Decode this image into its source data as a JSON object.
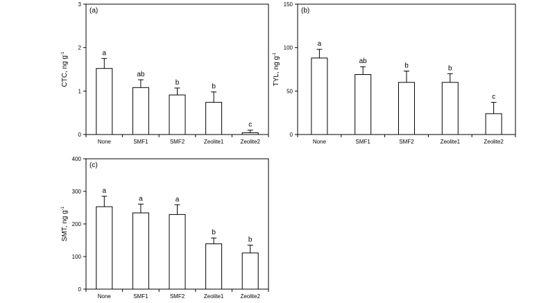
{
  "figure_title": "",
  "chart_data": [
    {
      "type": "bar",
      "panel": "(a)",
      "ylabel": "CTC, ng g",
      "ylabel_sup": "-1",
      "xlabel": "",
      "categories": [
        "None",
        "SMF1",
        "SMF2",
        "Zeolite1",
        "Zeolite2"
      ],
      "values": [
        1.52,
        1.08,
        0.91,
        0.74,
        0.04
      ],
      "errors": [
        0.23,
        0.18,
        0.16,
        0.24,
        0.06
      ],
      "significance": [
        "a",
        "ab",
        "b",
        "b",
        "c"
      ],
      "ylim": [
        0,
        3
      ],
      "yticks": [
        0,
        1,
        2,
        3
      ],
      "grid": false,
      "legend": "none"
    },
    {
      "type": "bar",
      "panel": "(b)",
      "ylabel": "TYL, ng g",
      "ylabel_sup": "-1",
      "xlabel": "",
      "categories": [
        "None",
        "SMF1",
        "SMF2",
        "Zeolite1",
        "Zeolite2"
      ],
      "values": [
        88,
        69,
        60,
        60,
        24
      ],
      "errors": [
        10,
        9,
        13,
        10,
        13
      ],
      "significance": [
        "a",
        "ab",
        "b",
        "b",
        "c"
      ],
      "ylim": [
        0,
        150
      ],
      "yticks": [
        0,
        50,
        100,
        150
      ],
      "grid": false,
      "legend": "none"
    },
    {
      "type": "bar",
      "panel": "(c)",
      "ylabel": "SMT, ng g",
      "ylabel_sup": "-1",
      "xlabel": "",
      "categories": [
        "None",
        "SMF1",
        "SMF2",
        "Zeolite1",
        "Zeolite2"
      ],
      "values": [
        253,
        234,
        229,
        139,
        111
      ],
      "errors": [
        32,
        27,
        30,
        18,
        24
      ],
      "significance": [
        "a",
        "a",
        "a",
        "b",
        "b"
      ],
      "ylim": [
        0,
        400
      ],
      "yticks": [
        0,
        100,
        200,
        300,
        400
      ],
      "grid": false,
      "legend": "none"
    }
  ]
}
